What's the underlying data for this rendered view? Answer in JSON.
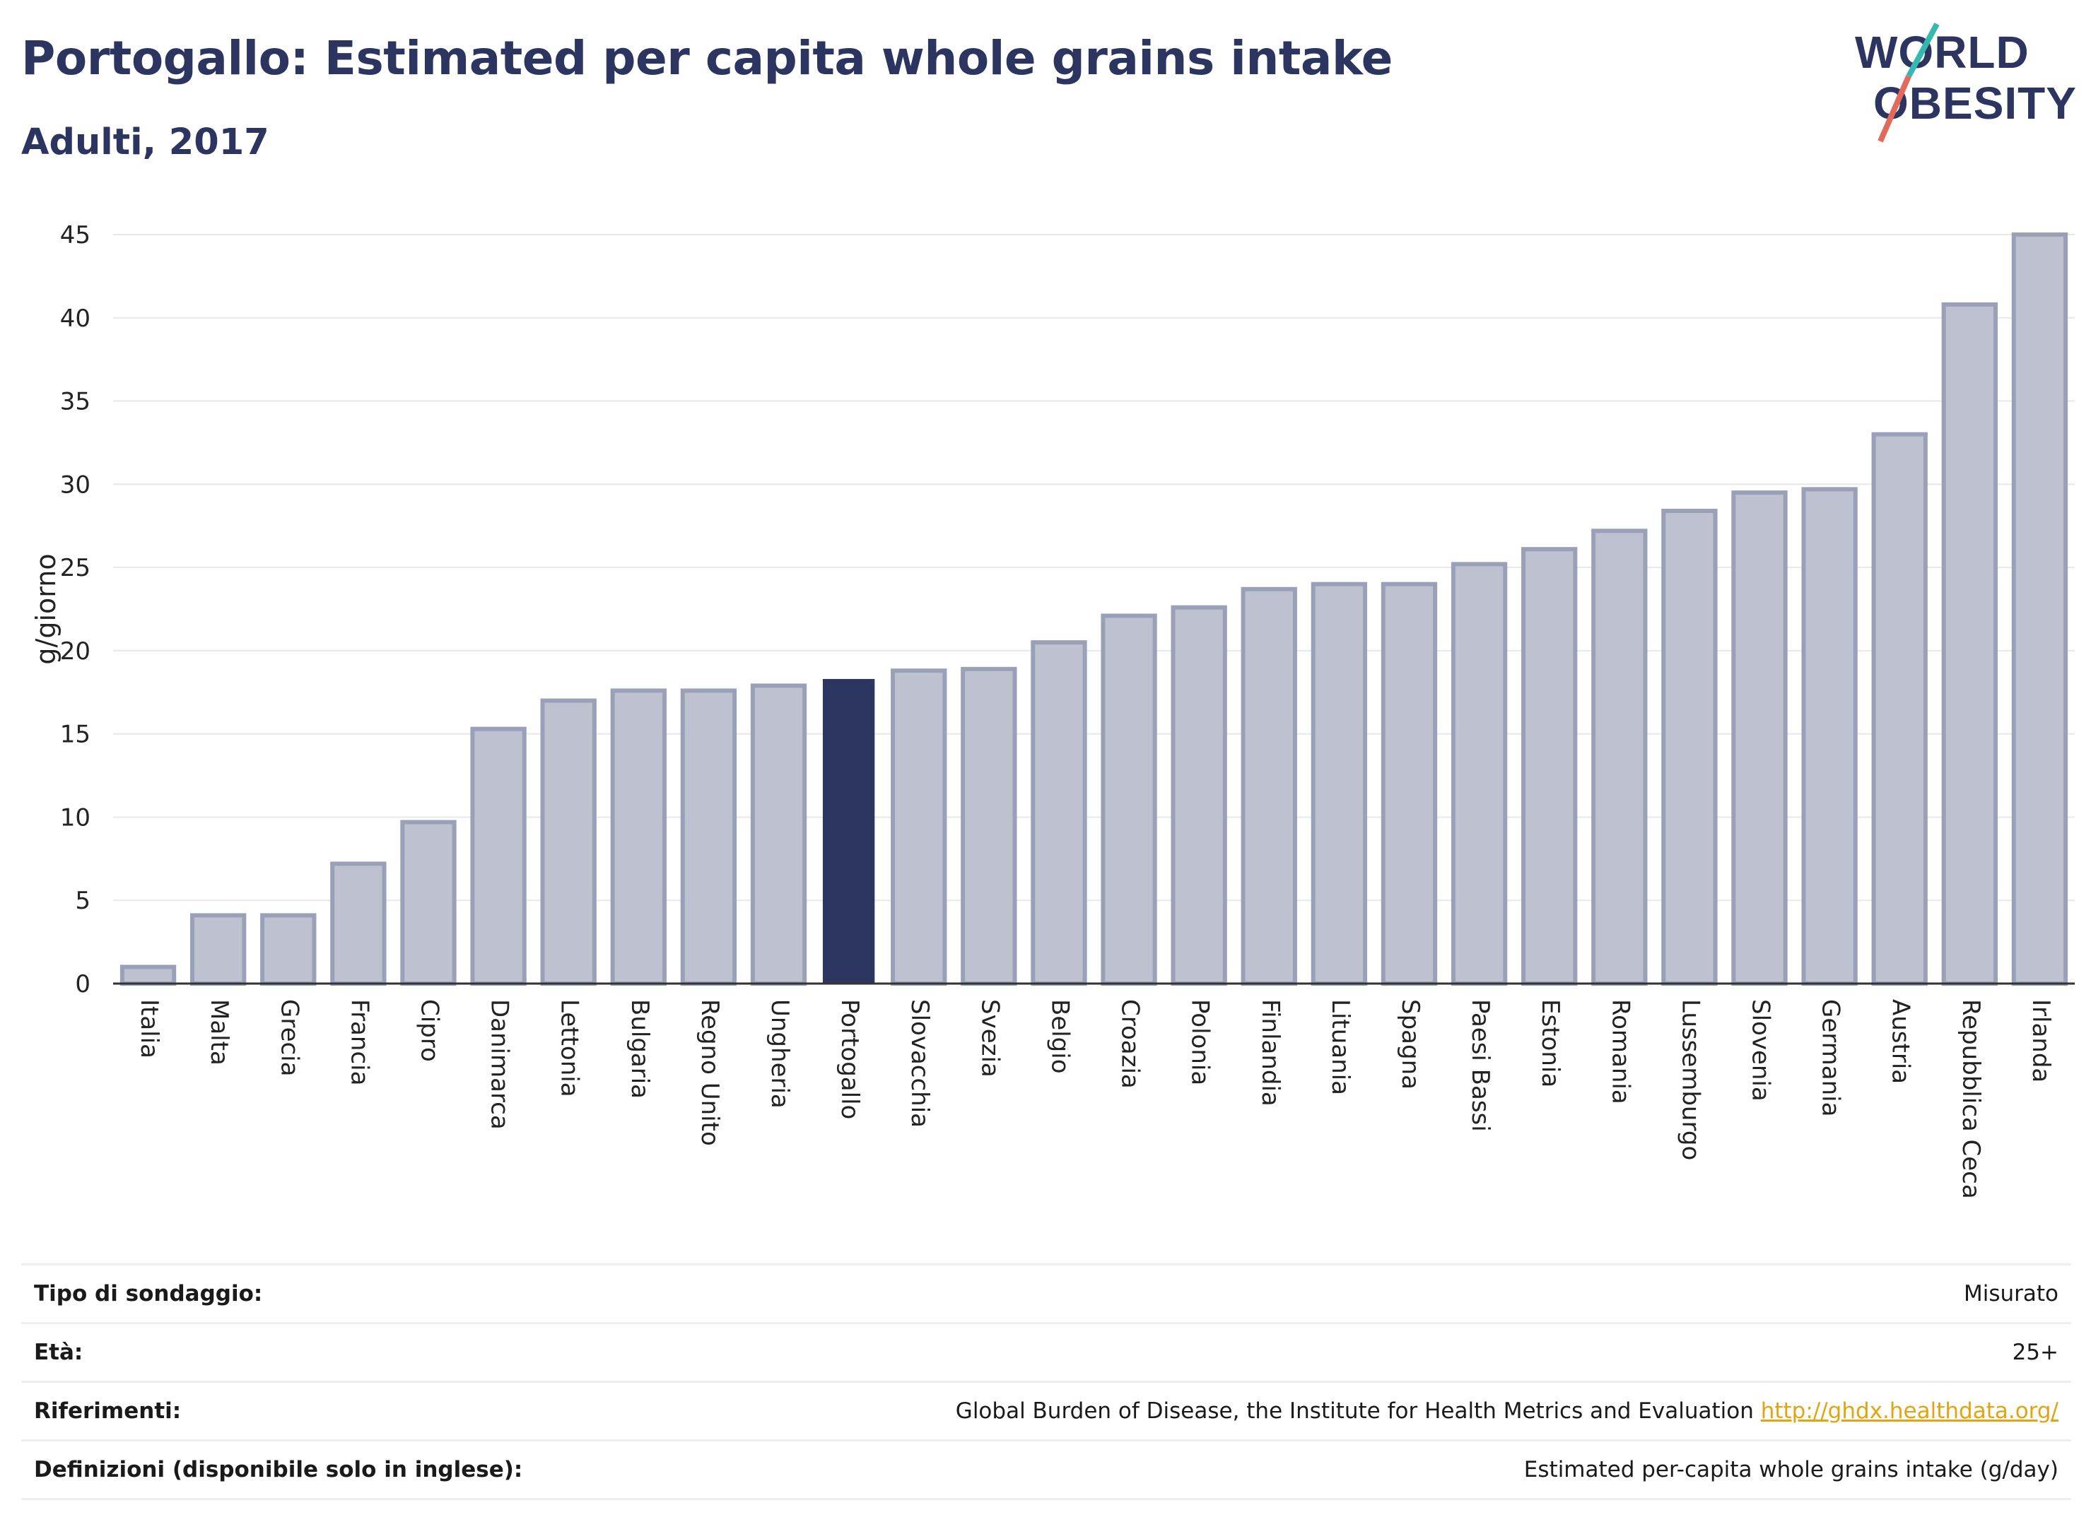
{
  "title": "Portogallo: Estimated per capita whole grains intake",
  "subtitle": "Adulti, 2017",
  "logo": {
    "line1": "WORLD",
    "line2": "OBESITY"
  },
  "colors": {
    "title": "#2b3560",
    "bar": "#bec2d0",
    "bar_stroke": "#9aa0b8",
    "highlight": "#2b3560",
    "grid": "#e6e8ee",
    "axis": "#333333",
    "link": "#e0a516",
    "logo_slash_top": "#35b7b2",
    "logo_slash_bottom": "#e36a5a"
  },
  "chart_data": {
    "type": "bar",
    "ylabel": "g/giorno",
    "ylim": [
      0,
      45
    ],
    "yticks": [
      0,
      5,
      10,
      15,
      20,
      25,
      30,
      35,
      40,
      45
    ],
    "highlight": "Portogallo",
    "categories": [
      "Italia",
      "Malta",
      "Grecia",
      "Francia",
      "Cipro",
      "Danimarca",
      "Lettonia",
      "Bulgaria",
      "Regno Unito",
      "Ungheria",
      "Portogallo",
      "Slovacchia",
      "Svezia",
      "Belgio",
      "Croazia",
      "Polonia",
      "Finlandia",
      "Lituania",
      "Spagna",
      "Paesi Bassi",
      "Estonia",
      "Romania",
      "Lussemburgo",
      "Slovenia",
      "Germania",
      "Austria",
      "Repubblica Ceca",
      "Irlanda"
    ],
    "values": [
      1.0,
      4.1,
      4.1,
      7.2,
      9.7,
      15.3,
      17.0,
      17.6,
      17.6,
      17.9,
      18.3,
      18.8,
      18.9,
      20.5,
      22.1,
      22.6,
      23.7,
      24.0,
      24.0,
      25.2,
      26.1,
      27.2,
      28.4,
      29.5,
      29.7,
      33.0,
      40.8,
      45.0
    ],
    "grid": true
  },
  "info": [
    {
      "label": "Tipo di sondaggio:",
      "value": "Misurato"
    },
    {
      "label": "Età:",
      "value": "25+"
    },
    {
      "label": "Riferimenti:",
      "value": "Global Burden of Disease, the Institute for Health Metrics and Evaluation",
      "link": "http://ghdx.healthdata.org/"
    },
    {
      "label": "Definizioni (disponibile solo in inglese):",
      "value": "Estimated per-capita whole grains intake (g/day)"
    }
  ]
}
